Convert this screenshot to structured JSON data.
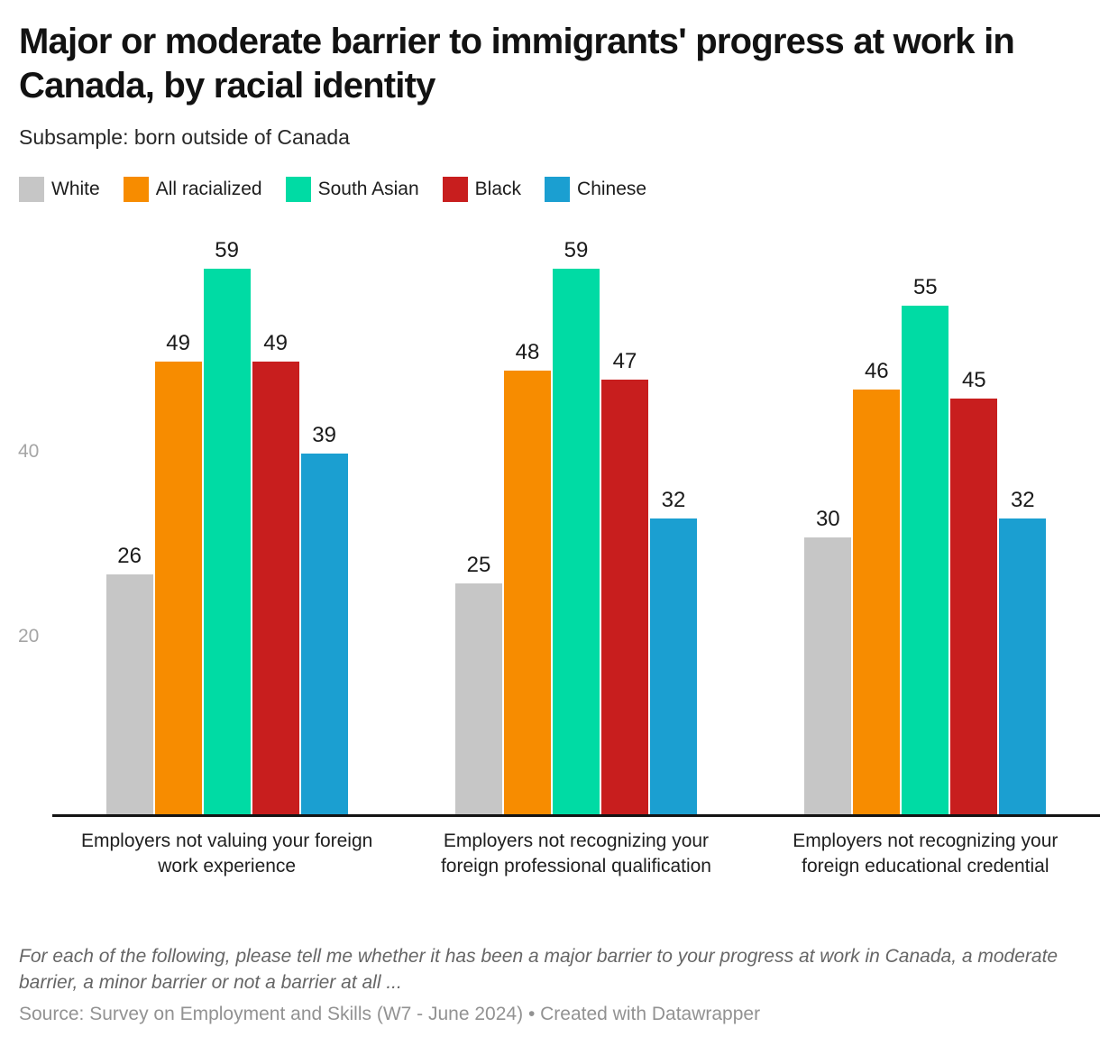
{
  "header": {
    "title": "Major or moderate barrier to immigrants' progress at work in Canada, by racial identity",
    "subtitle": "Subsample: born outside of Canada"
  },
  "chart_data": {
    "type": "bar",
    "grouped": true,
    "title": "Major or moderate barrier to immigrants' progress at work in Canada, by racial identity",
    "subtitle": "Subsample: born outside of Canada",
    "categories": [
      "Employers not valuing your foreign work experience",
      "Employers not recognizing your foreign professional qualification",
      "Employers not recognizing your foreign educational credential"
    ],
    "series": [
      {
        "name": "White",
        "color": "#c6c6c6",
        "values": [
          26,
          25,
          30
        ]
      },
      {
        "name": "All racialized",
        "color": "#f78c00",
        "values": [
          49,
          48,
          46
        ]
      },
      {
        "name": "South Asian",
        "color": "#00dba4",
        "values": [
          59,
          59,
          55
        ]
      },
      {
        "name": "Black",
        "color": "#c81e1e",
        "values": [
          49,
          47,
          45
        ]
      },
      {
        "name": "Chinese",
        "color": "#1b9fd1",
        "values": [
          39,
          32,
          32
        ]
      }
    ],
    "xlabel": "",
    "ylabel": "",
    "y_axis_ticks": [
      20,
      40
    ],
    "ylim": [
      0,
      59
    ],
    "grid": false,
    "legend_position": "top",
    "value_labels": true,
    "axis_color": "#141414",
    "tick_label_color": "#a5a5a5"
  },
  "footer": {
    "note": "For each of the following, please tell me whether it has been a major barrier to your progress at work in Canada, a moderate barrier, a minor barrier or not a barrier at all ...",
    "source": "Source: Survey on Employment and Skills (W7 - June 2024)",
    "separator": "•",
    "attribution": "Created with Datawrapper"
  }
}
